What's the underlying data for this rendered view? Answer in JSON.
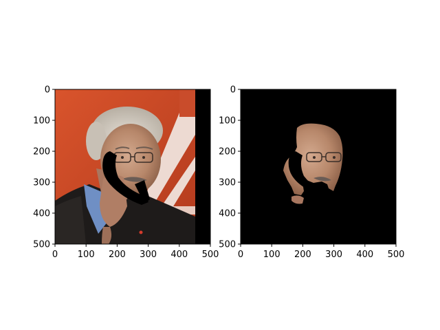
{
  "figure": {
    "background": "#ffffff",
    "panels": [
      {
        "id": "left",
        "content": "photo of grey-haired man in glasses, dark jacket, blue shirt, hand at chin; a black curved occlusion crosses the lower face; red background with white diagonal stripes",
        "image_extent": [
          0,
          500,
          500,
          0
        ],
        "visible_image_width": 450,
        "padding_color": "#000000",
        "xticks": [
          "0",
          "100",
          "200",
          "300",
          "400",
          "500"
        ],
        "yticks": [
          "0",
          "100",
          "200",
          "300",
          "400",
          "500"
        ]
      },
      {
        "id": "right",
        "content": "segmented face/skin mask: only facial skin region shown on black background, occlusion area removed",
        "image_extent": [
          0,
          500,
          500,
          0
        ],
        "background_color": "#000000",
        "xticks": [
          "0",
          "100",
          "200",
          "300",
          "400",
          "500"
        ],
        "yticks": [
          "0",
          "100",
          "200",
          "300",
          "400",
          "500"
        ]
      }
    ]
  },
  "chart_data": [
    {
      "type": "heatmap",
      "title": "",
      "xlabel": "",
      "ylabel": "",
      "xlim": [
        0,
        500
      ],
      "ylim": [
        500,
        0
      ],
      "xticks": [
        0,
        100,
        200,
        300,
        400,
        500
      ],
      "yticks": [
        0,
        100,
        200,
        300,
        400,
        500
      ],
      "grid": false
    },
    {
      "type": "heatmap",
      "title": "",
      "xlabel": "",
      "ylabel": "",
      "xlim": [
        0,
        500
      ],
      "ylim": [
        500,
        0
      ],
      "xticks": [
        0,
        100,
        200,
        300,
        400,
        500
      ],
      "yticks": [
        0,
        100,
        200,
        300,
        400,
        500
      ],
      "grid": false
    }
  ]
}
